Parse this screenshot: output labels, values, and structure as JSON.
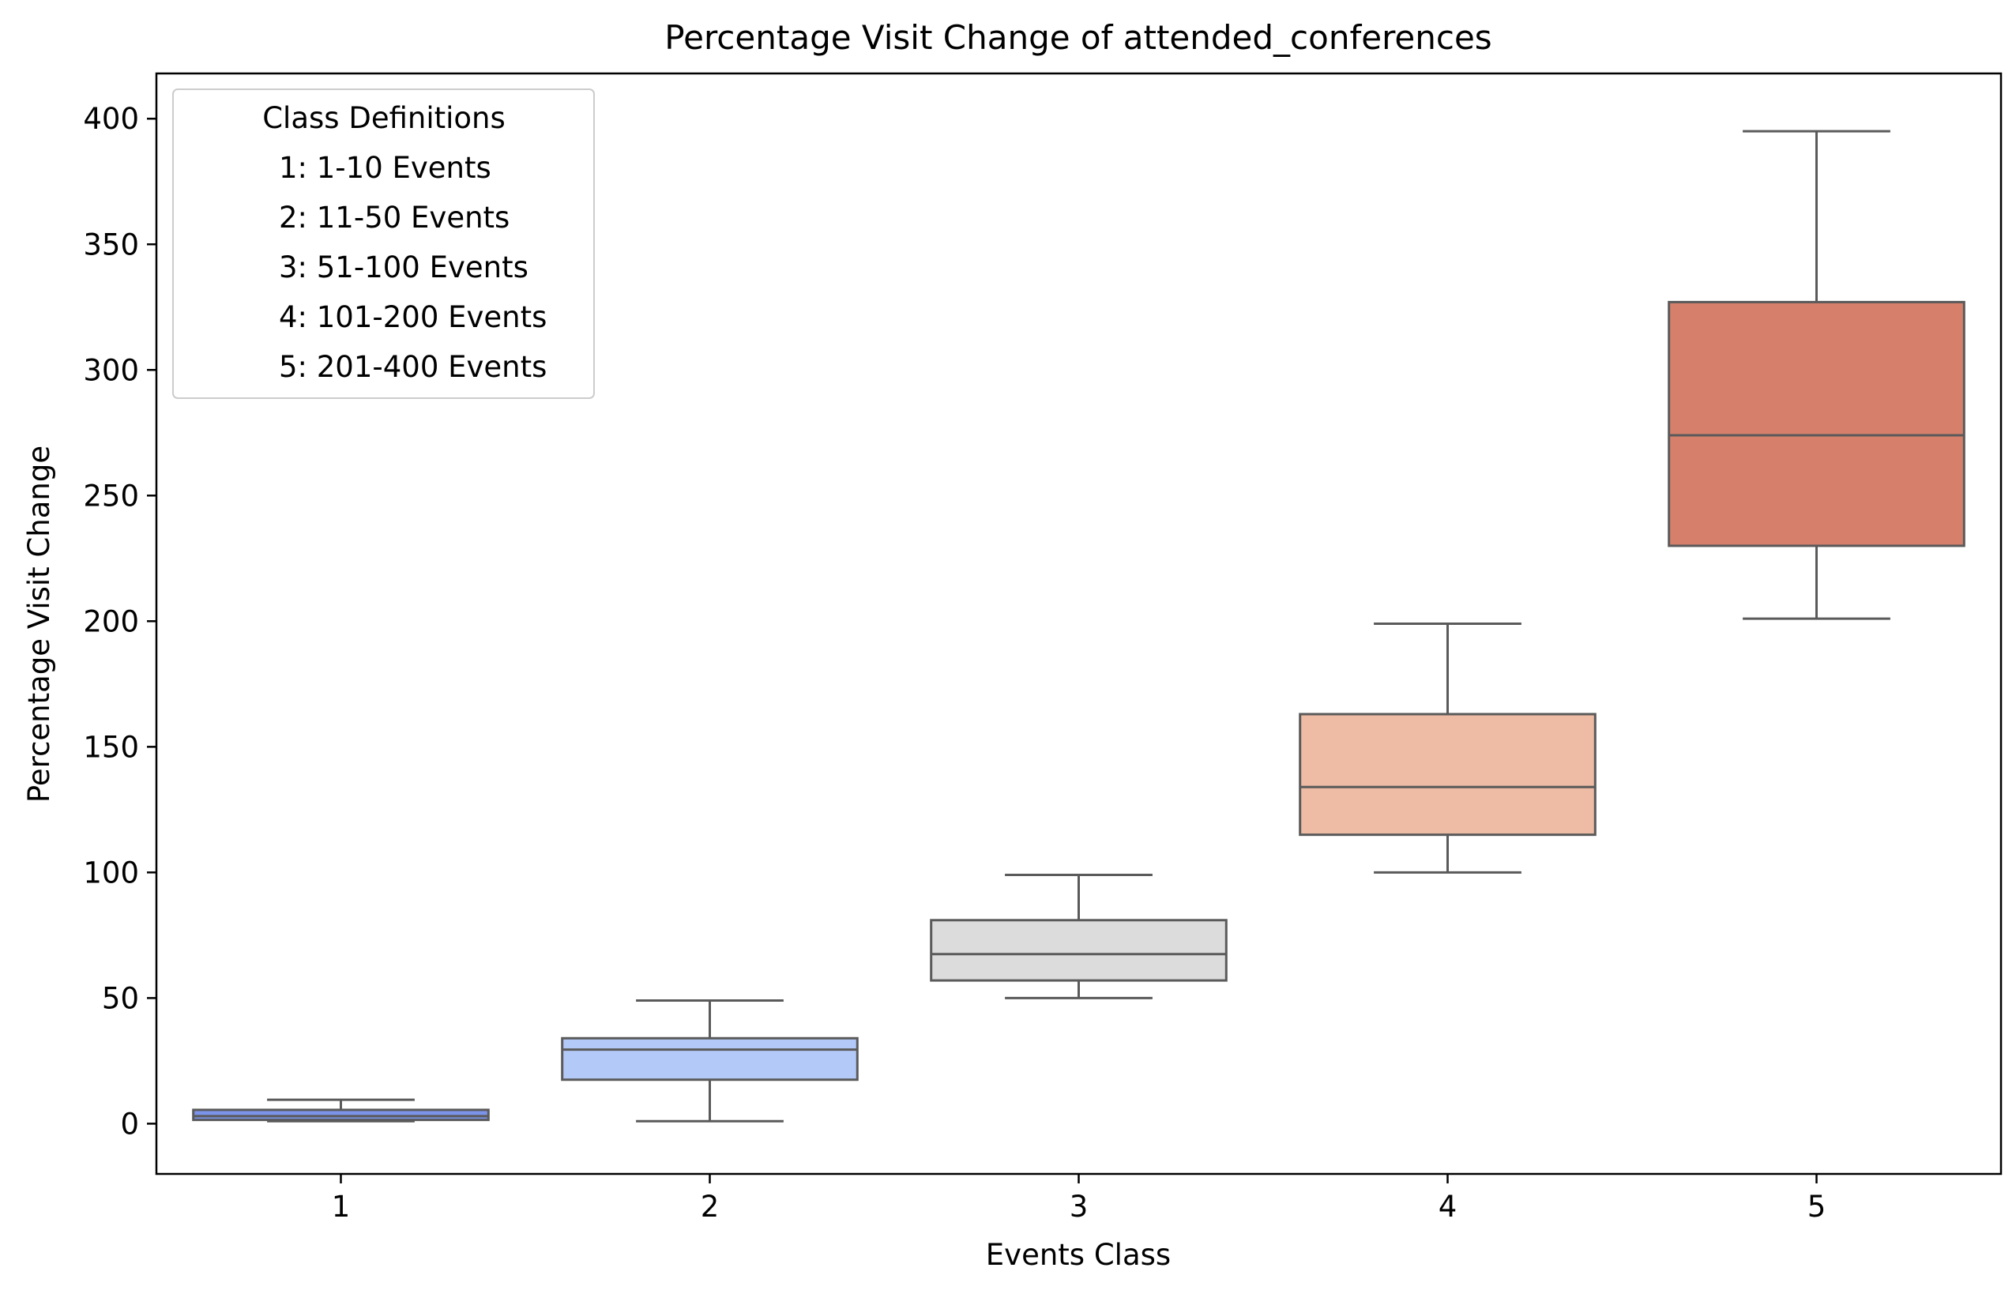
{
  "chart_data": {
    "type": "box",
    "title": "Percentage Visit Change of attended_conferences",
    "xlabel": "Events Class",
    "ylabel": "Percentage Visit Change",
    "categories": [
      "1",
      "2",
      "3",
      "4",
      "5"
    ],
    "ylim": [
      -20,
      418
    ],
    "yticks": [
      0,
      50,
      100,
      150,
      200,
      250,
      300,
      350,
      400
    ],
    "grid": false,
    "legend": {
      "title": "Class Definitions",
      "placement": "top-left",
      "entries": [
        "1: 1-10 Events",
        "2: 11-50 Events",
        "3: 51-100 Events",
        "4: 101-200 Events",
        "5: 201-400 Events"
      ]
    },
    "boxes": [
      {
        "category": "1",
        "whisker_low": 1,
        "q1": 1.5,
        "median": 3,
        "q3": 5.5,
        "whisker_high": 9.5,
        "color": "#7b93e8"
      },
      {
        "category": "2",
        "whisker_low": 1,
        "q1": 17.5,
        "median": 29.5,
        "q3": 34,
        "whisker_high": 49,
        "color": "#b3c9f7"
      },
      {
        "category": "3",
        "whisker_low": 50,
        "q1": 57,
        "median": 67.5,
        "q3": 81,
        "whisker_high": 99,
        "color": "#dcdcdc"
      },
      {
        "category": "4",
        "whisker_low": 100,
        "q1": 115,
        "median": 134,
        "q3": 163,
        "whisker_high": 199,
        "color": "#eebba4"
      },
      {
        "category": "5",
        "whisker_low": 201,
        "q1": 230,
        "median": 274,
        "q3": 327,
        "whisker_high": 395,
        "color": "#d6806b"
      }
    ]
  }
}
